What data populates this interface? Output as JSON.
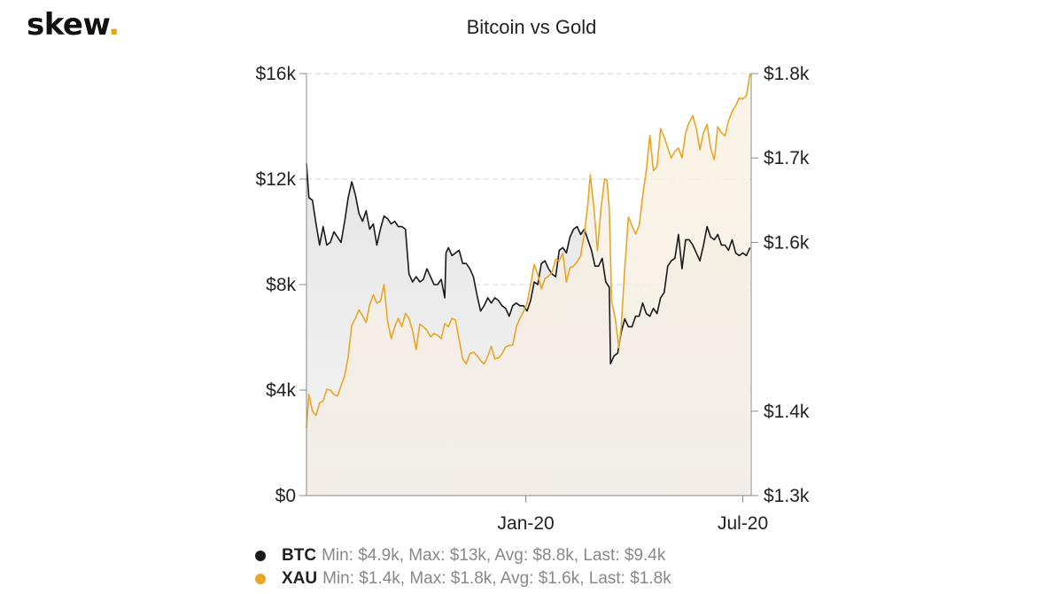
{
  "header": {
    "logo_text": "skew",
    "logo_dot": ".",
    "title": "Bitcoin vs Gold"
  },
  "legend": [
    {
      "name": "BTC",
      "color": "#1a1a1a",
      "stats": "Min: $4.9k, Max: $13k, Avg: $8.8k, Last: $9.4k"
    },
    {
      "name": "XAU",
      "color": "#e8a628",
      "stats": "Min: $1.4k, Max: $1.8k, Avg: $1.6k, Last: $1.8k"
    }
  ],
  "chart_data": {
    "type": "line",
    "title": "Bitcoin vs Gold",
    "x_axis": {
      "ticks": [
        "Jan-20",
        "Jul-20"
      ],
      "tick_dates": [
        "2020-01-01",
        "2020-07-01"
      ],
      "range": [
        "2019-07-01",
        "2020-07-08"
      ]
    },
    "y_left": {
      "ticks": [
        "$0",
        "$4k",
        "$8k",
        "$12k",
        "$16k"
      ],
      "tick_values": [
        0,
        4000,
        8000,
        12000,
        16000
      ],
      "range": [
        0,
        16000
      ]
    },
    "y_right": {
      "ticks": [
        "$1.3k",
        "$1.4k",
        "$1.6k",
        "$1.7k",
        "$1.8k"
      ],
      "tick_values": [
        1300,
        1400,
        1600,
        1700,
        1800
      ],
      "range": [
        1300,
        1800
      ]
    },
    "grid": "horizontal dashed",
    "series": [
      {
        "name": "BTC",
        "axis": "left",
        "color": "#1a1a1a",
        "fill": "#e5e5e5",
        "points": [
          [
            "2019-07-01",
            12600
          ],
          [
            "2019-07-03",
            11300
          ],
          [
            "2019-07-06",
            11200
          ],
          [
            "2019-07-09",
            10300
          ],
          [
            "2019-07-12",
            9500
          ],
          [
            "2019-07-15",
            10200
          ],
          [
            "2019-07-18",
            9500
          ],
          [
            "2019-07-21",
            9600
          ],
          [
            "2019-07-24",
            10000
          ],
          [
            "2019-07-27",
            9800
          ],
          [
            "2019-07-30",
            9600
          ],
          [
            "2019-08-02",
            10400
          ],
          [
            "2019-08-05",
            11300
          ],
          [
            "2019-08-08",
            11900
          ],
          [
            "2019-08-11",
            11400
          ],
          [
            "2019-08-14",
            10700
          ],
          [
            "2019-08-17",
            10400
          ],
          [
            "2019-08-20",
            10800
          ],
          [
            "2019-08-23",
            10100
          ],
          [
            "2019-08-26",
            10300
          ],
          [
            "2019-08-29",
            9500
          ],
          [
            "2019-09-01",
            10100
          ],
          [
            "2019-09-04",
            10600
          ],
          [
            "2019-09-07",
            10500
          ],
          [
            "2019-09-10",
            10300
          ],
          [
            "2019-09-13",
            10400
          ],
          [
            "2019-09-16",
            10200
          ],
          [
            "2019-09-19",
            10200
          ],
          [
            "2019-09-22",
            10100
          ],
          [
            "2019-09-25",
            8400
          ],
          [
            "2019-09-28",
            8100
          ],
          [
            "2019-10-01",
            8300
          ],
          [
            "2019-10-04",
            8100
          ],
          [
            "2019-10-07",
            8200
          ],
          [
            "2019-10-10",
            8600
          ],
          [
            "2019-10-13",
            8300
          ],
          [
            "2019-10-16",
            8000
          ],
          [
            "2019-10-19",
            8000
          ],
          [
            "2019-10-22",
            8200
          ],
          [
            "2019-10-25",
            7500
          ],
          [
            "2019-10-26",
            9200
          ],
          [
            "2019-10-28",
            9400
          ],
          [
            "2019-10-31",
            9100
          ],
          [
            "2019-11-03",
            9200
          ],
          [
            "2019-11-06",
            9300
          ],
          [
            "2019-11-09",
            8800
          ],
          [
            "2019-11-12",
            8800
          ],
          [
            "2019-11-15",
            8600
          ],
          [
            "2019-11-18",
            8300
          ],
          [
            "2019-11-21",
            7600
          ],
          [
            "2019-11-24",
            7000
          ],
          [
            "2019-11-27",
            7200
          ],
          [
            "2019-11-30",
            7500
          ],
          [
            "2019-12-03",
            7300
          ],
          [
            "2019-12-06",
            7500
          ],
          [
            "2019-12-09",
            7400
          ],
          [
            "2019-12-12",
            7200
          ],
          [
            "2019-12-15",
            7100
          ],
          [
            "2019-12-18",
            6800
          ],
          [
            "2019-12-21",
            7200
          ],
          [
            "2019-12-24",
            7300
          ],
          [
            "2019-12-27",
            7200
          ],
          [
            "2019-12-30",
            7200
          ],
          [
            "2020-01-02",
            7000
          ],
          [
            "2020-01-05",
            7400
          ],
          [
            "2020-01-08",
            8100
          ],
          [
            "2020-01-11",
            8000
          ],
          [
            "2020-01-14",
            8800
          ],
          [
            "2020-01-17",
            8900
          ],
          [
            "2020-01-20",
            8600
          ],
          [
            "2020-01-23",
            8400
          ],
          [
            "2020-01-26",
            8300
          ],
          [
            "2020-01-29",
            9300
          ],
          [
            "2020-02-01",
            9400
          ],
          [
            "2020-02-04",
            9200
          ],
          [
            "2020-02-07",
            9800
          ],
          [
            "2020-02-10",
            10100
          ],
          [
            "2020-02-13",
            10200
          ],
          [
            "2020-02-16",
            9900
          ],
          [
            "2020-02-19",
            10100
          ],
          [
            "2020-02-22",
            9700
          ],
          [
            "2020-02-25",
            9300
          ],
          [
            "2020-02-28",
            8700
          ],
          [
            "2020-03-02",
            8700
          ],
          [
            "2020-03-05",
            9000
          ],
          [
            "2020-03-08",
            8100
          ],
          [
            "2020-03-11",
            7900
          ],
          [
            "2020-03-12",
            5000
          ],
          [
            "2020-03-15",
            5300
          ],
          [
            "2020-03-18",
            5400
          ],
          [
            "2020-03-21",
            6200
          ],
          [
            "2020-03-24",
            6700
          ],
          [
            "2020-03-27",
            6400
          ],
          [
            "2020-03-30",
            6400
          ],
          [
            "2020-04-02",
            6800
          ],
          [
            "2020-04-05",
            6800
          ],
          [
            "2020-04-08",
            7300
          ],
          [
            "2020-04-11",
            6900
          ],
          [
            "2020-04-14",
            6800
          ],
          [
            "2020-04-17",
            7100
          ],
          [
            "2020-04-20",
            6900
          ],
          [
            "2020-04-23",
            7500
          ],
          [
            "2020-04-26",
            7700
          ],
          [
            "2020-04-29",
            8700
          ],
          [
            "2020-05-02",
            8900
          ],
          [
            "2020-05-05",
            9000
          ],
          [
            "2020-05-08",
            9900
          ],
          [
            "2020-05-11",
            8600
          ],
          [
            "2020-05-14",
            9700
          ],
          [
            "2020-05-17",
            9700
          ],
          [
            "2020-05-20",
            9500
          ],
          [
            "2020-05-23",
            9200
          ],
          [
            "2020-05-26",
            8900
          ],
          [
            "2020-05-29",
            9500
          ],
          [
            "2020-06-01",
            10200
          ],
          [
            "2020-06-04",
            9800
          ],
          [
            "2020-06-07",
            9700
          ],
          [
            "2020-06-10",
            9900
          ],
          [
            "2020-06-13",
            9500
          ],
          [
            "2020-06-16",
            9500
          ],
          [
            "2020-06-19",
            9300
          ],
          [
            "2020-06-22",
            9700
          ],
          [
            "2020-06-25",
            9200
          ],
          [
            "2020-06-28",
            9100
          ],
          [
            "2020-07-01",
            9200
          ],
          [
            "2020-07-04",
            9100
          ],
          [
            "2020-07-07",
            9400
          ]
        ]
      },
      {
        "name": "XAU",
        "axis": "right",
        "color": "#e8a628",
        "fill": "#f8edd8",
        "points": [
          [
            "2019-07-01",
            1380
          ],
          [
            "2019-07-03",
            1420
          ],
          [
            "2019-07-06",
            1400
          ],
          [
            "2019-07-09",
            1395
          ],
          [
            "2019-07-12",
            1410
          ],
          [
            "2019-07-15",
            1412
          ],
          [
            "2019-07-18",
            1426
          ],
          [
            "2019-07-21",
            1425
          ],
          [
            "2019-07-24",
            1420
          ],
          [
            "2019-07-27",
            1418
          ],
          [
            "2019-07-30",
            1430
          ],
          [
            "2019-08-02",
            1442
          ],
          [
            "2019-08-05",
            1465
          ],
          [
            "2019-08-08",
            1502
          ],
          [
            "2019-08-11",
            1510
          ],
          [
            "2019-08-14",
            1520
          ],
          [
            "2019-08-17",
            1513
          ],
          [
            "2019-08-20",
            1505
          ],
          [
            "2019-08-23",
            1526
          ],
          [
            "2019-08-26",
            1538
          ],
          [
            "2019-08-29",
            1528
          ],
          [
            "2019-09-01",
            1530
          ],
          [
            "2019-09-04",
            1550
          ],
          [
            "2019-09-07",
            1507
          ],
          [
            "2019-09-10",
            1486
          ],
          [
            "2019-09-13",
            1500
          ],
          [
            "2019-09-16",
            1510
          ],
          [
            "2019-09-19",
            1500
          ],
          [
            "2019-09-22",
            1516
          ],
          [
            "2019-09-25",
            1510
          ],
          [
            "2019-09-28",
            1495
          ],
          [
            "2019-10-01",
            1473
          ],
          [
            "2019-10-04",
            1503
          ],
          [
            "2019-10-07",
            1500
          ],
          [
            "2019-10-10",
            1496
          ],
          [
            "2019-10-13",
            1488
          ],
          [
            "2019-10-16",
            1492
          ],
          [
            "2019-10-19",
            1490
          ],
          [
            "2019-10-22",
            1486
          ],
          [
            "2019-10-25",
            1504
          ],
          [
            "2019-10-28",
            1500
          ],
          [
            "2019-10-31",
            1510
          ],
          [
            "2019-11-03",
            1508
          ],
          [
            "2019-11-06",
            1485
          ],
          [
            "2019-11-09",
            1462
          ],
          [
            "2019-11-12",
            1456
          ],
          [
            "2019-11-15",
            1468
          ],
          [
            "2019-11-18",
            1470
          ],
          [
            "2019-11-21",
            1466
          ],
          [
            "2019-11-24",
            1460
          ],
          [
            "2019-11-27",
            1456
          ],
          [
            "2019-11-30",
            1465
          ],
          [
            "2019-12-03",
            1477
          ],
          [
            "2019-12-06",
            1462
          ],
          [
            "2019-12-09",
            1463
          ],
          [
            "2019-12-12",
            1468
          ],
          [
            "2019-12-15",
            1476
          ],
          [
            "2019-12-18",
            1478
          ],
          [
            "2019-12-21",
            1478
          ],
          [
            "2019-12-24",
            1500
          ],
          [
            "2019-12-27",
            1510
          ],
          [
            "2019-12-30",
            1518
          ],
          [
            "2020-01-02",
            1528
          ],
          [
            "2020-01-05",
            1550
          ],
          [
            "2020-01-08",
            1574
          ],
          [
            "2020-01-11",
            1562
          ],
          [
            "2020-01-14",
            1545
          ],
          [
            "2020-01-17",
            1557
          ],
          [
            "2020-01-20",
            1560
          ],
          [
            "2020-01-23",
            1565
          ],
          [
            "2020-01-26",
            1580
          ],
          [
            "2020-01-29",
            1578
          ],
          [
            "2020-02-01",
            1587
          ],
          [
            "2020-02-04",
            1553
          ],
          [
            "2020-02-07",
            1570
          ],
          [
            "2020-02-10",
            1572
          ],
          [
            "2020-02-13",
            1577
          ],
          [
            "2020-02-16",
            1584
          ],
          [
            "2020-02-19",
            1610
          ],
          [
            "2020-02-22",
            1645
          ],
          [
            "2020-02-24",
            1680
          ],
          [
            "2020-02-27",
            1643
          ],
          [
            "2020-03-01",
            1590
          ],
          [
            "2020-03-04",
            1640
          ],
          [
            "2020-03-07",
            1675
          ],
          [
            "2020-03-09",
            1674
          ],
          [
            "2020-03-11",
            1640
          ],
          [
            "2020-03-13",
            1530
          ],
          [
            "2020-03-16",
            1510
          ],
          [
            "2020-03-19",
            1475
          ],
          [
            "2020-03-21",
            1500
          ],
          [
            "2020-03-24",
            1570
          ],
          [
            "2020-03-27",
            1630
          ],
          [
            "2020-03-30",
            1620
          ],
          [
            "2020-04-02",
            1610
          ],
          [
            "2020-04-05",
            1620
          ],
          [
            "2020-04-08",
            1655
          ],
          [
            "2020-04-11",
            1685
          ],
          [
            "2020-04-14",
            1727
          ],
          [
            "2020-04-17",
            1685
          ],
          [
            "2020-04-20",
            1690
          ],
          [
            "2020-04-23",
            1735
          ],
          [
            "2020-04-26",
            1725
          ],
          [
            "2020-04-29",
            1712
          ],
          [
            "2020-05-02",
            1700
          ],
          [
            "2020-05-05",
            1708
          ],
          [
            "2020-05-08",
            1712
          ],
          [
            "2020-05-11",
            1700
          ],
          [
            "2020-05-14",
            1730
          ],
          [
            "2020-05-17",
            1742
          ],
          [
            "2020-05-20",
            1750
          ],
          [
            "2020-05-23",
            1735
          ],
          [
            "2020-05-26",
            1710
          ],
          [
            "2020-05-29",
            1730
          ],
          [
            "2020-06-01",
            1740
          ],
          [
            "2020-06-04",
            1712
          ],
          [
            "2020-06-07",
            1698
          ],
          [
            "2020-06-10",
            1737
          ],
          [
            "2020-06-13",
            1730
          ],
          [
            "2020-06-16",
            1726
          ],
          [
            "2020-06-19",
            1744
          ],
          [
            "2020-06-22",
            1755
          ],
          [
            "2020-06-25",
            1762
          ],
          [
            "2020-06-28",
            1771
          ],
          [
            "2020-07-01",
            1770
          ],
          [
            "2020-07-04",
            1774
          ],
          [
            "2020-07-07",
            1800
          ]
        ]
      }
    ]
  }
}
